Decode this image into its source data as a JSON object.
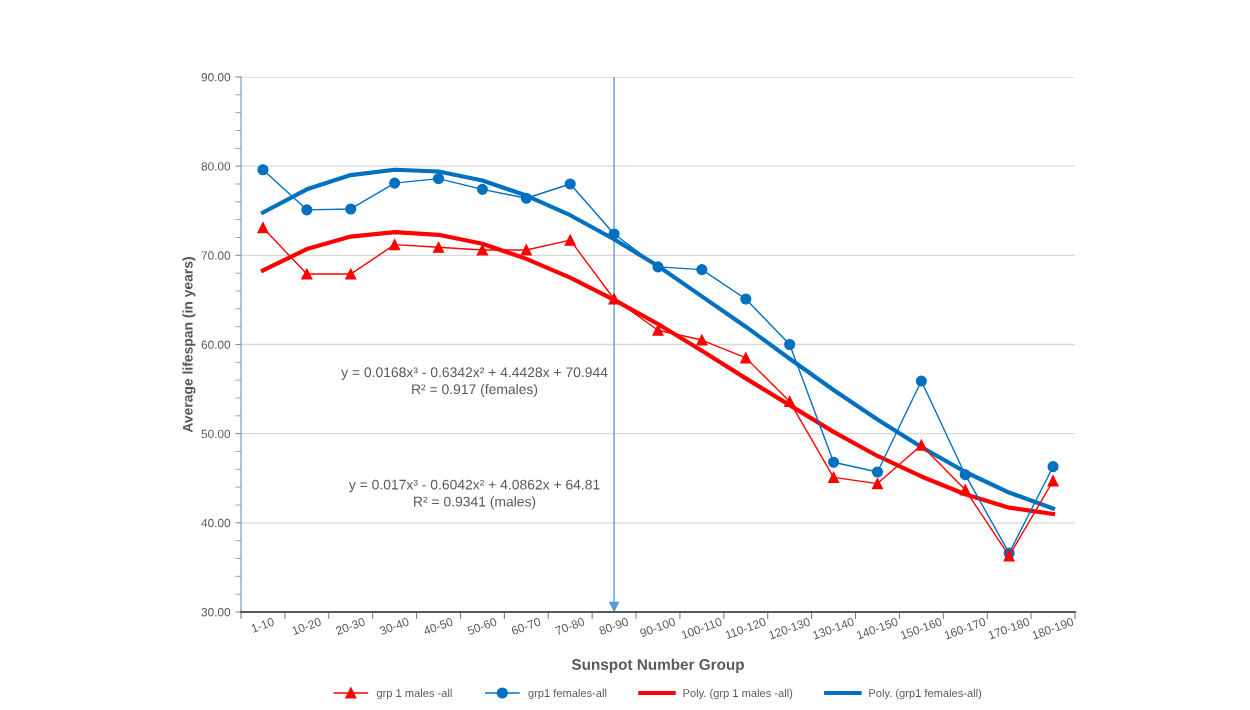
{
  "chart_data": {
    "type": "line",
    "xlabel": "Sunspot Number Group",
    "ylabel": "Average lifespan (in years)",
    "categories": [
      "1-10",
      "10-20",
      "20-30",
      "30-40",
      "40-50",
      "50-60",
      "60-70",
      "70-80",
      "80-90",
      "90-100",
      "100-110",
      "110-120",
      "120-130",
      "130-140",
      "140-150",
      "150-160",
      "160-170",
      "170-180",
      "180-190"
    ],
    "series": [
      {
        "name": "grp 1 males -all",
        "color": "#ff0000",
        "marker": "triangle",
        "values": [
          73.1,
          67.9,
          67.9,
          71.2,
          70.9,
          70.6,
          70.6,
          71.7,
          65.1,
          61.6,
          60.5,
          58.5,
          53.6,
          45.1,
          44.4,
          48.7,
          43.7,
          36.3,
          44.7
        ]
      },
      {
        "name": "grp1 females-all",
        "color": "#0070c0",
        "marker": "circle",
        "values": [
          79.6,
          75.1,
          75.2,
          78.1,
          78.6,
          77.4,
          76.4,
          78.0,
          72.4,
          68.7,
          68.4,
          65.1,
          60.0,
          46.8,
          45.7,
          55.9,
          45.4,
          36.6,
          46.3
        ]
      },
      {
        "name": "Poly. (grp 1 males -all)",
        "color": "#ff0000",
        "marker": "none",
        "values": [
          68.3,
          70.7,
          72.1,
          72.6,
          72.3,
          71.3,
          69.6,
          67.5,
          65.0,
          62.3,
          59.3,
          56.2,
          53.2,
          50.2,
          47.5,
          45.2,
          43.2,
          41.7,
          41.0
        ]
      },
      {
        "name": "Poly. (grp1 females-all)",
        "color": "#0070c0",
        "marker": "none",
        "values": [
          74.8,
          77.4,
          79.0,
          79.6,
          79.4,
          78.4,
          76.7,
          74.5,
          71.8,
          68.8,
          65.4,
          62.0,
          58.4,
          54.9,
          51.6,
          48.5,
          45.7,
          43.4,
          41.6
        ]
      }
    ],
    "ylim": [
      30,
      90
    ],
    "yticks": [
      {
        "value": 30,
        "label": "30.00"
      },
      {
        "value": 40,
        "label": "40.00"
      },
      {
        "value": 50,
        "label": "50.00"
      },
      {
        "value": 60,
        "label": "60.00"
      },
      {
        "value": 70,
        "label": "70.00"
      },
      {
        "value": 80,
        "label": "80.00"
      },
      {
        "value": 90,
        "label": "90.00"
      }
    ],
    "grid": "y",
    "legend": "bottom",
    "ref_lines": [
      {
        "axis": "x",
        "value": "80-90",
        "color": "#5b9bd5"
      }
    ],
    "annotations": [
      "y = 0.0168x³ - 0.6342x² + 4.4428x + 70.944\nR² = 0.917 (females)",
      "y = 0.017x³ - 0.6042x² + 4.0862x + 64.81\nR² = 0.9341 (males)"
    ]
  }
}
